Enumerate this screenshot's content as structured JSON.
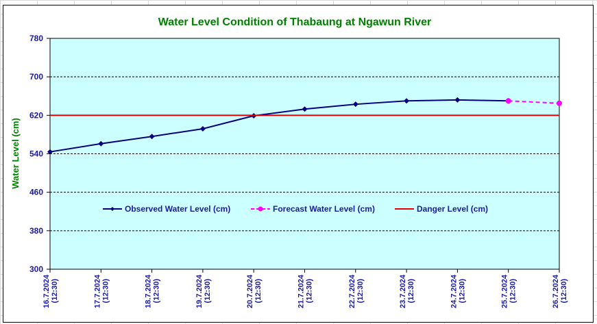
{
  "chart_data": {
    "type": "line",
    "title": "Water Level Condition of Thabaung at Ngawun River",
    "xlabel": "",
    "ylabel": "Water Level (cm)",
    "ylim": [
      300,
      780
    ],
    "yticks": [
      300,
      380,
      460,
      540,
      620,
      700,
      780
    ],
    "grid": "horizontal dashed",
    "categories": [
      "16.7.2024 (12:30)",
      "17.7.2024 (12:30)",
      "18.7.2024 (12:30)",
      "19.7.2024 (12:30)",
      "20.7.2024 (12:30)",
      "21.7.2024 (12:30)",
      "22.7.2024 (12:30)",
      "23.7.2024 (12:30)",
      "24.7.2024 (12:30)",
      "25.7.2024 (12:30)",
      "26.7.2024 (12:30)"
    ],
    "category_dates": [
      "16.7.2024",
      "17.7.2024",
      "18.7.2024",
      "19.7.2024",
      "20.7.2024",
      "21.7.2024",
      "22.7.2024",
      "23.7.2024",
      "24.7.2024",
      "25.7.2024",
      "26.7.2024"
    ],
    "category_times": [
      "(12:30)",
      "(12:30)",
      "(12:30)",
      "(12:30)",
      "(12:30)",
      "(12:30)",
      "(12:30)",
      "(12:30)",
      "(12:30)",
      "(12:30)",
      "(12:30)"
    ],
    "series": [
      {
        "name": "Observed Water Level (cm)",
        "color": "#000080",
        "style": "solid",
        "marker": "diamond",
        "values": [
          544,
          561,
          576,
          592,
          619,
          633,
          643,
          650,
          652,
          650,
          null
        ]
      },
      {
        "name": "Forecast Water Level (cm)",
        "color": "#ff00ff",
        "style": "dashed",
        "marker": "circle",
        "values": [
          null,
          null,
          null,
          null,
          null,
          null,
          null,
          null,
          null,
          650,
          645
        ]
      },
      {
        "name": "Danger Level (cm)",
        "color": "#e00000",
        "style": "solid",
        "marker": "none",
        "values": [
          620,
          620,
          620,
          620,
          620,
          620,
          620,
          620,
          620,
          620,
          620
        ]
      }
    ],
    "legend": "center",
    "plot_background": "#ccffff"
  }
}
